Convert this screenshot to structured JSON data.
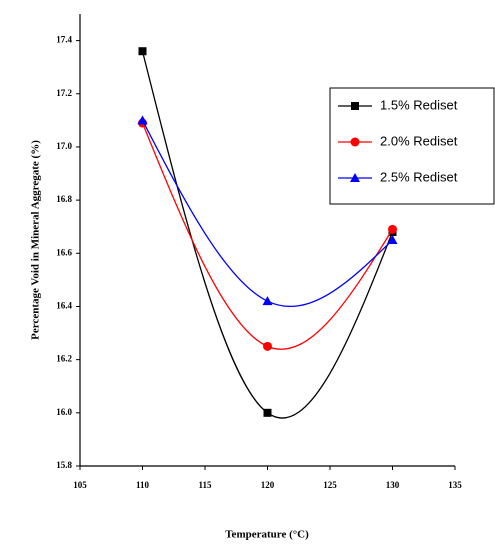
{
  "chart_data": {
    "type": "line",
    "x_label": "Temperature (°C)",
    "y_label": "Percentage Void in Mineral Aggregate (%)",
    "x": [
      110,
      120,
      130
    ],
    "series": [
      {
        "name": "1.5% Rediset",
        "color": "#000000",
        "marker": "square",
        "values": [
          17.36,
          16.0,
          16.68
        ]
      },
      {
        "name": "2.0% Rediset",
        "color": "#ff0000",
        "marker": "circle",
        "values": [
          17.09,
          16.25,
          16.69
        ]
      },
      {
        "name": "2.5% Rediset",
        "color": "#0000ff",
        "marker": "triangle",
        "values": [
          17.1,
          16.42,
          16.65
        ]
      }
    ],
    "xlim": [
      105,
      135
    ],
    "xticks": [
      105,
      110,
      115,
      120,
      125,
      130,
      135
    ],
    "ylim": [
      15.8,
      17.5
    ],
    "yticks": [
      15.8,
      {
        "value": 16,
        "label": "16.0"
      },
      16.2,
      16.4,
      16.6,
      16.8,
      {
        "value": 17,
        "label": "17.0"
      },
      17.2,
      17.4
    ],
    "smooth": true,
    "legend": "upper right"
  }
}
